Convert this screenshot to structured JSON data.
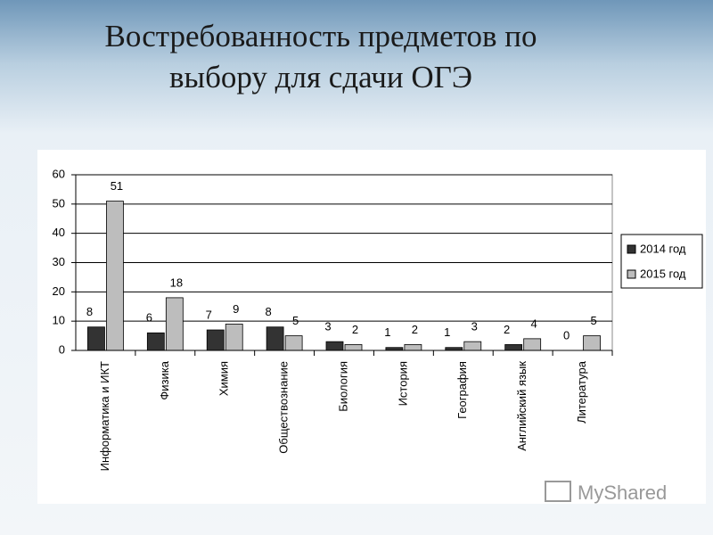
{
  "chart_data": {
    "type": "bar",
    "title": "Востребованность предметов по выбору для сдачи ОГЭ",
    "categories": [
      "Информатика и ИКТ",
      "Физика",
      "Химия",
      "Обществознание",
      "Биология",
      "История",
      "География",
      "Английский язык",
      "Литература"
    ],
    "series": [
      {
        "name": "2014 год",
        "color": "#333333",
        "values": [
          8,
          6,
          7,
          8,
          3,
          1,
          1,
          2,
          0
        ]
      },
      {
        "name": "2015 год",
        "color": "#bdbdbd",
        "values": [
          51,
          18,
          9,
          5,
          2,
          2,
          3,
          4,
          5
        ]
      }
    ],
    "ylim": [
      0,
      60
    ],
    "yticks": [
      0,
      10,
      20,
      30,
      40,
      50,
      60
    ],
    "grid": true,
    "legend": "right",
    "watermark": "MyShared"
  }
}
